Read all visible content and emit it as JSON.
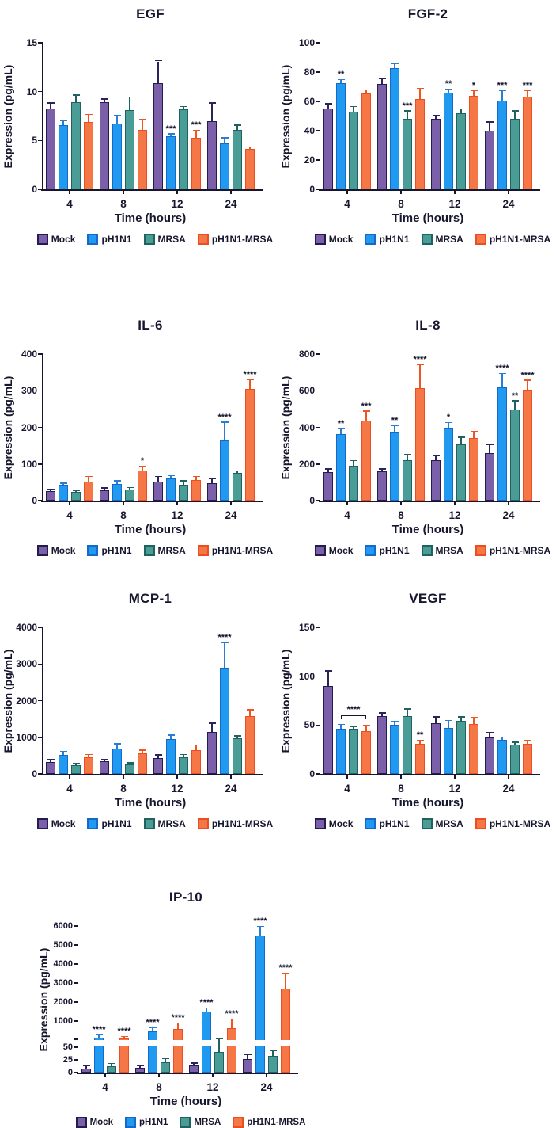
{
  "figure": {
    "background": "#ffffff",
    "text_color": "#16162e"
  },
  "series_styles": [
    {
      "name": "Mock",
      "fill": "#7b5fa9",
      "border": "#221d4e",
      "error": "#2a2558"
    },
    {
      "name": "pH1N1",
      "fill": "#1f9af0",
      "border": "#1668c9",
      "error": "#2b7cd6"
    },
    {
      "name": "MRSA",
      "fill": "#4a9d96",
      "border": "#20635e",
      "error": "#20635e"
    },
    {
      "name": "pH1N1-MRSA",
      "fill": "#f57745",
      "border": "#ec4d21",
      "error": "#f2541f"
    }
  ],
  "legend": {
    "items": [
      "Mock",
      "pH1N1",
      "MRSA",
      "pH1N1-MRSA"
    ],
    "position": "bottom"
  },
  "chart_data": [
    {
      "type": "bar",
      "title": "EGF",
      "xlabel": "Time (hours)",
      "ylabel": "Expression (pg/mL)",
      "categories": [
        "4",
        "8",
        "12",
        "24"
      ],
      "ylim": [
        0,
        15
      ],
      "yticks": [
        0,
        5,
        10,
        15
      ],
      "grid": false,
      "series": [
        {
          "name": "Mock",
          "values": [
            8.3,
            8.9,
            10.9,
            7.0
          ],
          "errors": [
            0.5,
            0.3,
            2.2,
            1.8
          ]
        },
        {
          "name": "pH1N1",
          "values": [
            6.6,
            6.7,
            5.4,
            4.7
          ],
          "errors": [
            0.4,
            0.8,
            0.2,
            0.5
          ]
        },
        {
          "name": "MRSA",
          "values": [
            8.9,
            8.1,
            8.2,
            6.1
          ],
          "errors": [
            0.7,
            1.3,
            0.2,
            0.4
          ]
        },
        {
          "name": "pH1N1-MRSA",
          "values": [
            6.9,
            6.1,
            5.3,
            4.1
          ],
          "errors": [
            0.7,
            1.0,
            0.7,
            0.2
          ]
        }
      ],
      "significance": [
        {
          "category": 2,
          "series": 1,
          "label": "***"
        },
        {
          "category": 2,
          "series": 3,
          "label": "***"
        }
      ]
    },
    {
      "type": "bar",
      "title": "FGF-2",
      "xlabel": "Time (hours)",
      "ylabel": "Expression (pg/mL)",
      "categories": [
        "4",
        "8",
        "12",
        "24"
      ],
      "ylim": [
        0,
        100
      ],
      "yticks": [
        0,
        20,
        40,
        60,
        80,
        100
      ],
      "grid": false,
      "series": [
        {
          "name": "Mock",
          "values": [
            55,
            72,
            48,
            40
          ],
          "errors": [
            3,
            3,
            2,
            5.5
          ]
        },
        {
          "name": "pH1N1",
          "values": [
            72.5,
            83,
            66,
            60.5
          ],
          "errors": [
            2,
            2.5,
            2,
            6.5
          ]
        },
        {
          "name": "MRSA",
          "values": [
            53,
            48,
            52,
            48
          ],
          "errors": [
            3,
            5,
            2.5,
            5
          ]
        },
        {
          "name": "pH1N1-MRSA",
          "values": [
            65.5,
            61.5,
            64,
            63.5
          ],
          "errors": [
            2,
            7,
            3,
            3.5
          ]
        }
      ],
      "significance": [
        {
          "category": 0,
          "series": 1,
          "label": "**"
        },
        {
          "category": 1,
          "series": 2,
          "label": "***"
        },
        {
          "category": 2,
          "series": 1,
          "label": "**"
        },
        {
          "category": 2,
          "series": 3,
          "label": "*"
        },
        {
          "category": 3,
          "series": 1,
          "label": "***"
        },
        {
          "category": 3,
          "series": 3,
          "label": "***"
        }
      ]
    },
    {
      "type": "bar",
      "title": "IL-6",
      "xlabel": "Time (hours)",
      "ylabel": "Expression (pg/mL)",
      "categories": [
        "4",
        "8",
        "12",
        "24"
      ],
      "ylim": [
        0,
        400
      ],
      "yticks": [
        0,
        100,
        200,
        300,
        400
      ],
      "grid": false,
      "series": [
        {
          "name": "Mock",
          "values": [
            26,
            29,
            52,
            47
          ],
          "errors": [
            4,
            4,
            12,
            11
          ]
        },
        {
          "name": "pH1N1",
          "values": [
            43,
            46,
            61,
            164
          ],
          "errors": [
            3,
            7,
            6,
            48
          ]
        },
        {
          "name": "MRSA",
          "values": [
            23,
            30,
            43,
            76
          ],
          "errors": [
            4,
            4,
            9,
            4
          ]
        },
        {
          "name": "pH1N1-MRSA",
          "values": [
            52,
            83,
            56,
            304
          ],
          "errors": [
            12,
            10,
            8,
            24
          ]
        }
      ],
      "significance": [
        {
          "category": 1,
          "series": 3,
          "label": "*"
        },
        {
          "category": 3,
          "series": 1,
          "label": "****"
        },
        {
          "category": 3,
          "series": 3,
          "label": "****"
        }
      ]
    },
    {
      "type": "bar",
      "title": "IL-8",
      "xlabel": "Time (hours)",
      "ylabel": "Expression (pg/mL)",
      "categories": [
        "4",
        "8",
        "12",
        "24"
      ],
      "ylim": [
        0,
        800
      ],
      "yticks": [
        0,
        200,
        400,
        600,
        800
      ],
      "grid": false,
      "series": [
        {
          "name": "Mock",
          "values": [
            155,
            160,
            222,
            258
          ],
          "errors": [
            15,
            10,
            20,
            45
          ]
        },
        {
          "name": "pH1N1",
          "values": [
            365,
            375,
            397,
            620
          ],
          "errors": [
            25,
            30,
            25,
            70
          ]
        },
        {
          "name": "MRSA",
          "values": [
            190,
            222,
            308,
            497
          ],
          "errors": [
            25,
            28,
            35,
            45
          ]
        },
        {
          "name": "pH1N1-MRSA",
          "values": [
            435,
            615,
            340,
            607
          ],
          "errors": [
            50,
            125,
            35,
            48
          ]
        }
      ],
      "significance": [
        {
          "category": 0,
          "series": 1,
          "label": "**"
        },
        {
          "category": 0,
          "series": 3,
          "label": "***"
        },
        {
          "category": 1,
          "series": 1,
          "label": "**"
        },
        {
          "category": 1,
          "series": 3,
          "label": "****"
        },
        {
          "category": 2,
          "series": 1,
          "label": "*"
        },
        {
          "category": 3,
          "series": 1,
          "label": "****"
        },
        {
          "category": 3,
          "series": 2,
          "label": "**"
        },
        {
          "category": 3,
          "series": 3,
          "label": "****"
        }
      ]
    },
    {
      "type": "bar",
      "title": "MCP-1",
      "xlabel": "Time (hours)",
      "ylabel": "Expression (pg/mL)",
      "categories": [
        "4",
        "8",
        "12",
        "24"
      ],
      "ylim": [
        0,
        4000
      ],
      "yticks": [
        0,
        1000,
        2000,
        3000,
        4000
      ],
      "grid": false,
      "series": [
        {
          "name": "Mock",
          "values": [
            330,
            350,
            440,
            1150
          ],
          "errors": [
            50,
            40,
            60,
            220
          ]
        },
        {
          "name": "pH1N1",
          "values": [
            530,
            700,
            950,
            2890
          ],
          "errors": [
            70,
            110,
            90,
            670
          ]
        },
        {
          "name": "MRSA",
          "values": [
            240,
            250,
            460,
            970
          ],
          "errors": [
            40,
            40,
            50,
            50
          ]
        },
        {
          "name": "pH1N1-MRSA",
          "values": [
            460,
            570,
            640,
            1570
          ],
          "errors": [
            50,
            60,
            130,
            170
          ]
        }
      ],
      "significance": [
        {
          "category": 3,
          "series": 1,
          "label": "****"
        }
      ]
    },
    {
      "type": "bar",
      "title": "VEGF",
      "xlabel": "Time (hours)",
      "ylabel": "Expression (pg/mL)",
      "categories": [
        "4",
        "8",
        "12",
        "24"
      ],
      "ylim": [
        0,
        150
      ],
      "yticks": [
        0,
        50,
        100,
        150
      ],
      "grid": false,
      "series": [
        {
          "name": "Mock",
          "values": [
            90,
            59,
            52,
            37
          ],
          "errors": [
            15,
            3,
            6,
            5
          ]
        },
        {
          "name": "pH1N1",
          "values": [
            46,
            50,
            47,
            35
          ],
          "errors": [
            4,
            3,
            7,
            2
          ]
        },
        {
          "name": "MRSA",
          "values": [
            46,
            59,
            54,
            30
          ],
          "errors": [
            2,
            7,
            4,
            2
          ]
        },
        {
          "name": "pH1N1-MRSA",
          "values": [
            44,
            31,
            51,
            31
          ],
          "errors": [
            5,
            3,
            6,
            3
          ]
        }
      ],
      "significance": [
        {
          "category": 1,
          "series": 3,
          "label": "**"
        }
      ],
      "bracket": {
        "category": 0,
        "from_series": 1,
        "to_series": 3,
        "y": 60,
        "label": "****"
      }
    },
    {
      "type": "bar",
      "title": "IP-10",
      "xlabel": "Time (hours)",
      "ylabel": "Expression (pg/mL)",
      "categories": [
        "4",
        "8",
        "12",
        "24"
      ],
      "ylim": [
        0,
        6000
      ],
      "grid": false,
      "yticks": [
        0,
        25,
        50,
        1000,
        2000,
        3000,
        4000,
        5000,
        6000
      ],
      "axis_break": {
        "lower": {
          "range": [
            0,
            50
          ],
          "ticks": [
            0,
            25,
            50
          ]
        },
        "upper": {
          "range": [
            50,
            6000
          ],
          "ticks": [
            1000,
            2000,
            3000,
            4000,
            5000,
            6000
          ]
        }
      },
      "series": [
        {
          "name": "Mock",
          "values": [
            8,
            9,
            14,
            26
          ],
          "errors": [
            4,
            3,
            4,
            9
          ]
        },
        {
          "name": "pH1N1",
          "values": [
            150,
            450,
            1500,
            5500
          ],
          "errors": [
            130,
            200,
            170,
            450
          ]
        },
        {
          "name": "MRSA",
          "values": [
            13,
            20,
            40,
            33
          ],
          "errors": [
            4,
            6,
            12,
            10
          ]
        },
        {
          "name": "pH1N1-MRSA",
          "values": [
            110,
            600,
            650,
            2700
          ],
          "errors": [
            60,
            280,
            430,
            800
          ]
        }
      ],
      "significance": [
        {
          "category": 0,
          "series": 1,
          "label": "****"
        },
        {
          "category": 0,
          "series": 3,
          "label": "****"
        },
        {
          "category": 1,
          "series": 1,
          "label": "****"
        },
        {
          "category": 1,
          "series": 3,
          "label": "****"
        },
        {
          "category": 2,
          "series": 1,
          "label": "****"
        },
        {
          "category": 2,
          "series": 3,
          "label": "****"
        },
        {
          "category": 3,
          "series": 1,
          "label": "****"
        },
        {
          "category": 3,
          "series": 3,
          "label": "****"
        }
      ]
    }
  ]
}
